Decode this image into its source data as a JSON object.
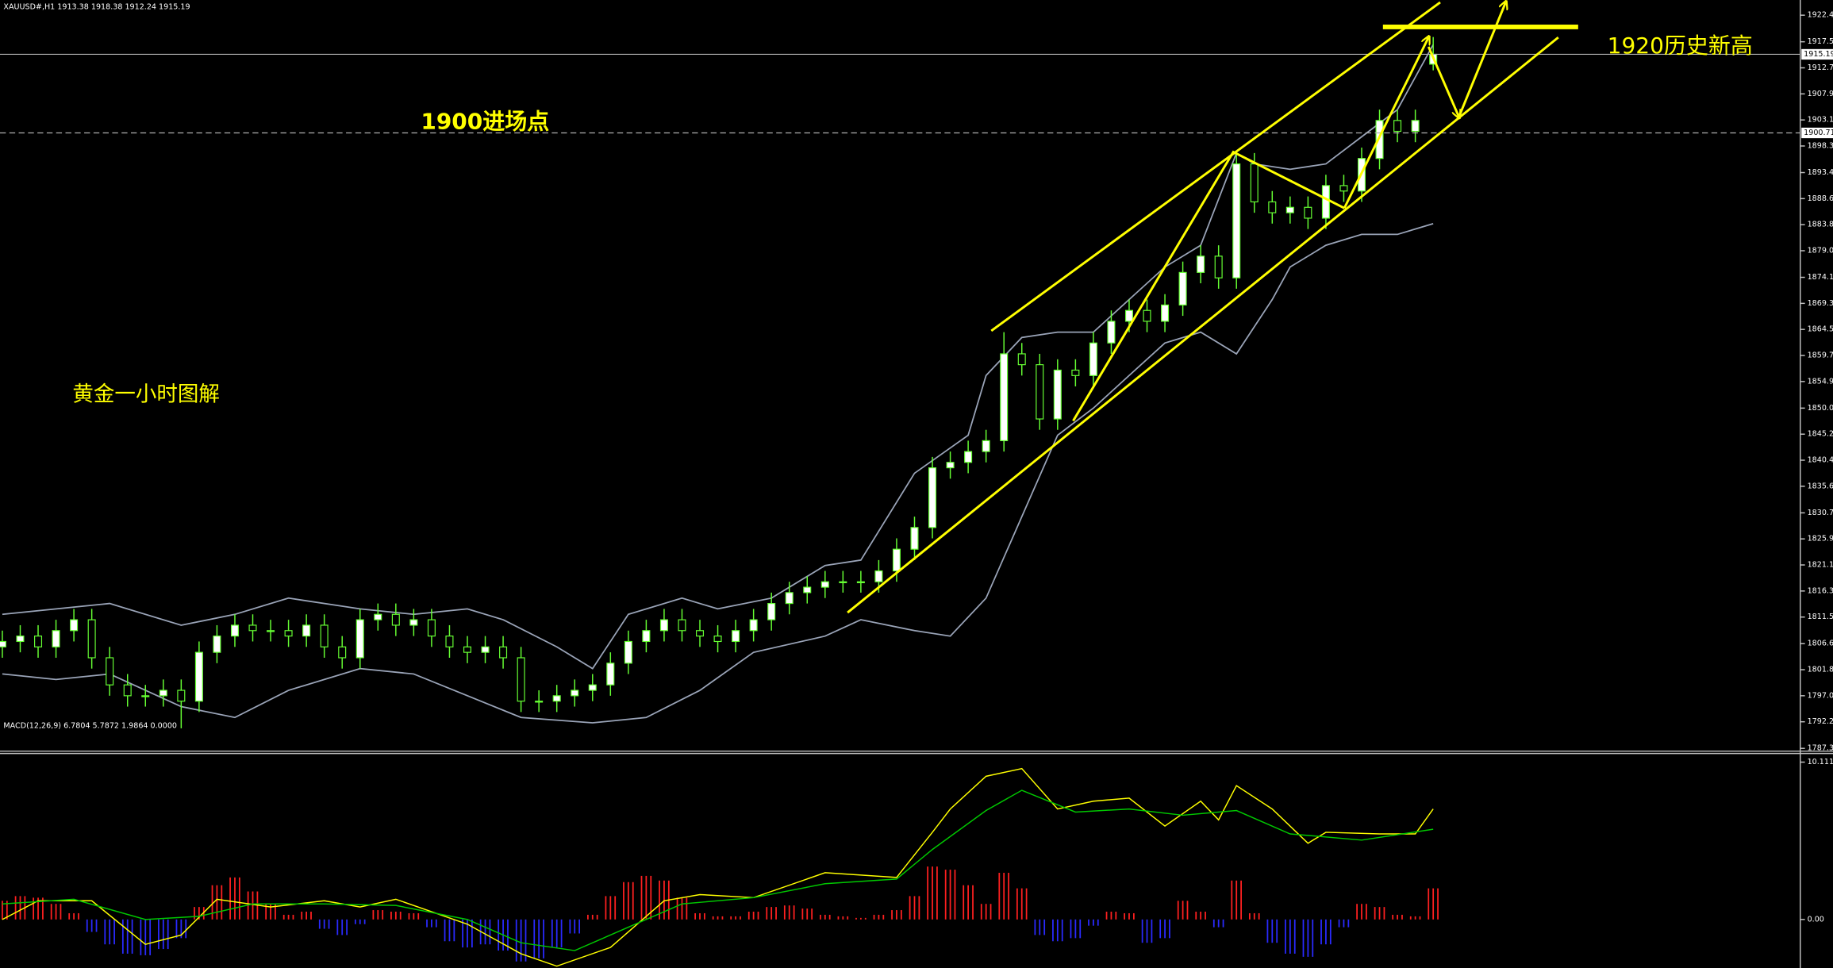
{
  "chart_data": [
    {
      "type": "candlestick",
      "title": "XAUUSD#,H1 1913.38 1918.38 1912.24 1915.19",
      "open": [
        1806,
        1807,
        1808,
        1806,
        1809,
        1811,
        1804,
        1799,
        1797,
        1797,
        1798,
        1796,
        1805,
        1808,
        1810,
        1809,
        1809,
        1808,
        1810,
        1806,
        1804,
        1811,
        1812,
        1810,
        1811,
        1808,
        1806,
        1805,
        1806,
        1804,
        1796,
        1796,
        1797,
        1798,
        1799,
        1803,
        1807,
        1809,
        1811,
        1809,
        1808,
        1807,
        1809,
        1811,
        1814,
        1816,
        1817,
        1818,
        1818,
        1818,
        1820,
        1824,
        1828,
        1839,
        1840,
        1842,
        1844,
        1860,
        1858,
        1848,
        1857,
        1856,
        1862,
        1866,
        1868,
        1866,
        1869,
        1875,
        1878,
        1874,
        1895,
        1888,
        1886,
        1887,
        1885,
        1891,
        1890,
        1896,
        1903,
        1901,
        1913.38
      ],
      "high": [
        1809,
        1810,
        1810,
        1811,
        1813,
        1813,
        1806,
        1801,
        1799,
        1800,
        1800,
        1807,
        1810,
        1812,
        1812,
        1811,
        1811,
        1812,
        1812,
        1808,
        1813,
        1814,
        1814,
        1813,
        1813,
        1810,
        1808,
        1808,
        1808,
        1806,
        1798,
        1799,
        1800,
        1801,
        1805,
        1809,
        1811,
        1813,
        1813,
        1811,
        1810,
        1811,
        1813,
        1816,
        1818,
        1819,
        1820,
        1820,
        1820,
        1822,
        1826,
        1830,
        1841,
        1842,
        1844,
        1846,
        1864,
        1862,
        1860,
        1859,
        1859,
        1864,
        1868,
        1870,
        1870,
        1871,
        1877,
        1880,
        1880,
        1897,
        1897,
        1890,
        1889,
        1889,
        1893,
        1893,
        1898,
        1905,
        1905,
        1905,
        1918.38
      ],
      "low": [
        1804,
        1805,
        1804,
        1804,
        1807,
        1802,
        1797,
        1795,
        1795,
        1795,
        1791,
        1794,
        1803,
        1806,
        1807,
        1807,
        1806,
        1806,
        1804,
        1802,
        1802,
        1809,
        1808,
        1808,
        1806,
        1804,
        1803,
        1803,
        1802,
        1794,
        1794,
        1794,
        1795,
        1796,
        1797,
        1801,
        1805,
        1807,
        1807,
        1806,
        1805,
        1805,
        1807,
        1809,
        1812,
        1814,
        1815,
        1816,
        1816,
        1816,
        1818,
        1822,
        1826,
        1837,
        1838,
        1840,
        1842,
        1856,
        1846,
        1846,
        1854,
        1854,
        1860,
        1864,
        1864,
        1864,
        1867,
        1873,
        1872,
        1872,
        1886,
        1884,
        1884,
        1883,
        1883,
        1888,
        1888,
        1894,
        1899,
        1899,
        1912.24
      ],
      "close": [
        1807,
        1808,
        1806,
        1809,
        1811,
        1804,
        1799,
        1797,
        1797,
        1798,
        1796,
        1805,
        1808,
        1810,
        1809,
        1809,
        1808,
        1810,
        1806,
        1804,
        1811,
        1812,
        1810,
        1811,
        1808,
        1806,
        1805,
        1806,
        1804,
        1796,
        1796,
        1797,
        1798,
        1799,
        1803,
        1807,
        1809,
        1811,
        1809,
        1808,
        1807,
        1809,
        1811,
        1814,
        1816,
        1817,
        1818,
        1818,
        1818,
        1820,
        1824,
        1828,
        1839,
        1840,
        1842,
        1844,
        1860,
        1858,
        1848,
        1857,
        1856,
        1862,
        1866,
        1868,
        1866,
        1869,
        1875,
        1878,
        1874,
        1895,
        1888,
        1886,
        1887,
        1885,
        1891,
        1890,
        1896,
        1903,
        1901,
        1903,
        1915.19
      ],
      "up_color": "#ffffff",
      "down_color": "#000000",
      "wick_color": "#66ff33",
      "ylim": [
        1786.9,
        1925.2
      ],
      "yticks": [
        {
          "value": 1922.4,
          "label": "1922.40"
        },
        {
          "value": 1917.5,
          "label": "1917.50"
        },
        {
          "value": 1912.7,
          "label": "1912.70"
        },
        {
          "value": 1907.9,
          "label": "1907.90"
        },
        {
          "value": 1903.1,
          "label": "1903.10"
        },
        {
          "value": 1898.3,
          "label": "1898.30"
        },
        {
          "value": 1893.4,
          "label": "1893.40"
        },
        {
          "value": 1888.6,
          "label": "1888.60"
        },
        {
          "value": 1883.8,
          "label": "1883.80"
        },
        {
          "value": 1879,
          "label": "1879.00"
        },
        {
          "value": 1874.1,
          "label": "1874.10"
        },
        {
          "value": 1869.3,
          "label": "1869.30"
        },
        {
          "value": 1864.5,
          "label": "1864.50"
        },
        {
          "value": 1859.7,
          "label": "1859.70"
        },
        {
          "value": 1854.9,
          "label": "1854.90"
        },
        {
          "value": 1850,
          "label": "1850.00"
        },
        {
          "value": 1845.2,
          "label": "1845.20"
        },
        {
          "value": 1840.4,
          "label": "1840.40"
        },
        {
          "value": 1835.6,
          "label": "1835.60"
        },
        {
          "value": 1830.7,
          "label": "1830.70"
        },
        {
          "value": 1825.9,
          "label": "1825.90"
        },
        {
          "value": 1821.1,
          "label": "1821.10"
        },
        {
          "value": 1816.3,
          "label": "1816.30"
        },
        {
          "value": 1811.5,
          "label": "1811.50"
        },
        {
          "value": 1806.6,
          "label": "1806.60"
        },
        {
          "value": 1801.8,
          "label": "1801.80"
        },
        {
          "value": 1797,
          "label": "1797.00"
        },
        {
          "value": 1792.2,
          "label": "1792.20"
        },
        {
          "value": 1787.3,
          "label": "1787.30"
        }
      ],
      "bands": [
        {
          "color": "#9aa4b8",
          "x": [
            0,
            6,
            10,
            13,
            16,
            20,
            23,
            26,
            28,
            31,
            33,
            35,
            38,
            40,
            43,
            46,
            48,
            51,
            54,
            55,
            57,
            59,
            61,
            63,
            65,
            67,
            69,
            70,
            72,
            74,
            76,
            78,
            80
          ],
          "values": [
            1812,
            1814,
            1810,
            1812,
            1815,
            1813,
            1812,
            1813,
            1811,
            1806,
            1802,
            1812,
            1815,
            1813,
            1815,
            1821,
            1822,
            1838,
            1845,
            1856,
            1863,
            1864,
            1864,
            1870,
            1876,
            1880,
            1897,
            1895,
            1894,
            1895,
            1900,
            1905,
            1917
          ]
        },
        {
          "color": "#9aa4b8",
          "x": [
            0,
            3,
            6,
            10,
            13,
            16,
            20,
            23,
            26,
            29,
            33,
            36,
            39,
            42,
            46,
            48,
            51,
            53,
            55,
            57,
            59,
            61,
            63,
            65,
            67,
            69,
            71,
            72,
            74,
            76,
            78,
            80
          ],
          "values": [
            1801,
            1800,
            1801,
            1795,
            1793,
            1798,
            1802,
            1801,
            1797,
            1793,
            1792,
            1793,
            1798,
            1805,
            1808,
            1811,
            1809,
            1808,
            1815,
            1830,
            1845,
            1850,
            1856,
            1862,
            1864,
            1860,
            1870,
            1876,
            1880,
            1882,
            1882,
            1884
          ]
        }
      ],
      "price_lines": [
        {
          "value": 1915.19,
          "label": "1915.19",
          "dashed": false
        },
        {
          "value": 1900.71,
          "label": "1900.71",
          "dashed": true
        }
      ],
      "annotations": [
        "1900进场点",
        "1920历史新高",
        "黄金一小时图解"
      ],
      "annotation_color": "#ffff00"
    },
    {
      "type": "macd",
      "title": "MACD(12,26,9) 6.7804 5.7872 1.9864 0.0000",
      "histogram": [
        1.2,
        1.5,
        1.4,
        1.0,
        0.4,
        -0.8,
        -1.6,
        -2.2,
        -2.3,
        -1.9,
        -1.2,
        0.8,
        2.2,
        2.7,
        1.8,
        1.0,
        0.3,
        0.5,
        -0.6,
        -1.0,
        -0.3,
        0.6,
        0.5,
        0.4,
        -0.5,
        -1.4,
        -1.8,
        -1.6,
        -2.0,
        -2.7,
        -2.5,
        -1.8,
        -0.9,
        0.3,
        1.5,
        2.4,
        2.8,
        2.5,
        1.4,
        0.4,
        0.2,
        0.2,
        0.5,
        0.8,
        0.9,
        0.7,
        0.3,
        0.2,
        0.1,
        0.3,
        0.6,
        1.5,
        3.4,
        3.2,
        2.2,
        1.0,
        3.0,
        2.0,
        -1.0,
        -1.4,
        -1.2,
        -0.4,
        0.5,
        0.4,
        -1.5,
        -1.2,
        1.2,
        0.5,
        -0.5,
        2.5,
        0.4,
        -1.5,
        -2.2,
        -2.4,
        -1.6,
        -0.5,
        1.0,
        0.8,
        0.3,
        0.2,
        2.0
      ],
      "positive_color": "#ff2020",
      "negative_color": "#2a2aff",
      "series": [
        {
          "color": "#ffff00",
          "x": [
            0,
            2,
            5,
            8,
            10,
            12,
            15,
            18,
            20,
            22,
            26,
            29,
            31,
            34,
            37,
            39,
            42,
            46,
            50,
            52,
            53,
            55,
            57,
            59,
            61,
            63,
            65,
            67,
            68,
            69,
            71,
            73,
            74,
            77,
            79,
            80
          ],
          "values": [
            0,
            1.2,
            1.2,
            -1.6,
            -1.0,
            1.3,
            0.8,
            1.2,
            0.8,
            1.3,
            -0.3,
            -2.2,
            -3.0,
            -1.8,
            1.2,
            1.6,
            1.4,
            3.0,
            2.7,
            5.6,
            7.1,
            9.2,
            9.7,
            7.1,
            7.6,
            7.8,
            6.0,
            7.6,
            6.4,
            8.6,
            7.1,
            4.9,
            5.6,
            5.5,
            5.5,
            7.1
          ]
        },
        {
          "color": "#00c800",
          "x": [
            0,
            4,
            8,
            11,
            14,
            18,
            22,
            26,
            29,
            32,
            35,
            38,
            42,
            46,
            50,
            52,
            55,
            57,
            60,
            63,
            66,
            69,
            72,
            76,
            80
          ],
          "values": [
            1.0,
            1.3,
            0.0,
            0.2,
            1.0,
            1.0,
            0.9,
            0.0,
            -1.5,
            -2.0,
            -0.5,
            1.0,
            1.4,
            2.3,
            2.6,
            4.5,
            7.0,
            8.3,
            6.9,
            7.1,
            6.7,
            7.0,
            5.5,
            5.1,
            5.8
          ]
        }
      ],
      "ylim": [
        -3.12,
        10.63
      ],
      "yticks": [
        10.1117,
        {
          "value": 0,
          "label": "0.00"
        }
      ]
    }
  ]
}
